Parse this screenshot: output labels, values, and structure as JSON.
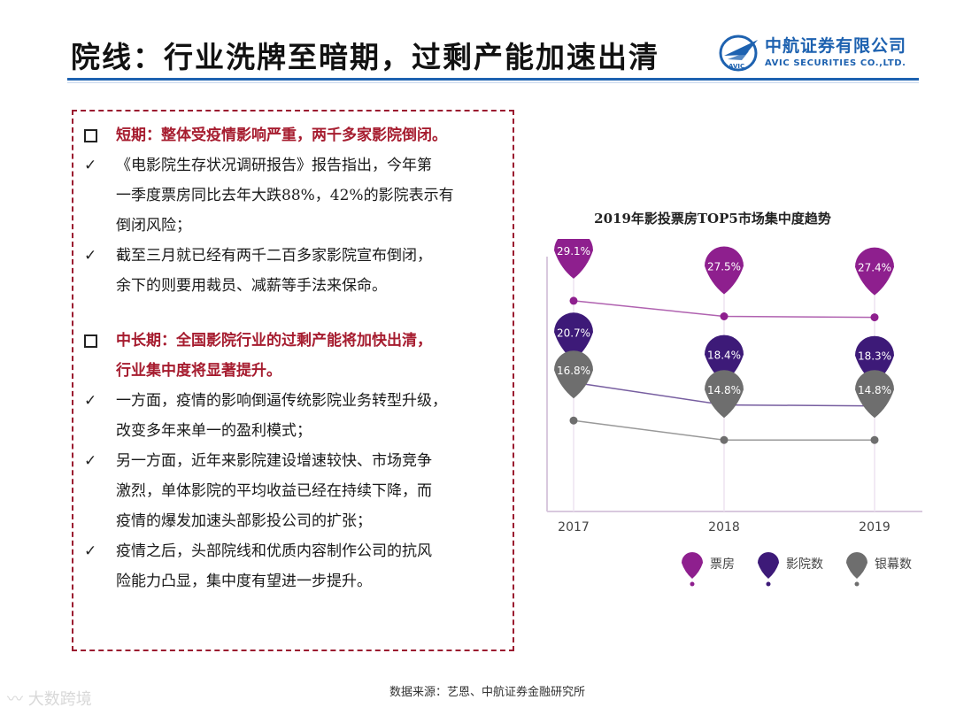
{
  "header": {
    "title": "院线：行业洗牌至暗期，过剩产能加速出清",
    "logo_cn": "中航证券有限公司",
    "logo_en": "AVIC SECURITIES CO.,LTD.",
    "logo_mark": "AVIC",
    "logo_icon": "avic-wing-icon",
    "accent_color": "#1e62b0"
  },
  "content": {
    "heading_color": "#a61c2f",
    "items": [
      {
        "type": "heading",
        "text": "短期：整体受疫情影响严重，两千多家影院倒闭。"
      },
      {
        "type": "check",
        "text": "《电影院生存状况调研报告》报告指出，今年第\n一季度票房同比去年大跌88%，42%的影院表示有\n倒闭风险；"
      },
      {
        "type": "check",
        "text": "截至三月就已经有两千二百多家影院宣布倒闭，\n余下的则要用裁员、减薪等手法来保命。"
      },
      {
        "type": "gap"
      },
      {
        "type": "heading",
        "text": "中长期：全国影院行业的过剩产能将加快出清，\n行业集中度将显著提升。"
      },
      {
        "type": "check",
        "text": "一方面，疫情的影响倒逼传统影院业务转型升级，\n改变多年来单一的盈利模式；"
      },
      {
        "type": "check",
        "text": "另一方面，近年来影院建设增速较快、市场竞争\n激烈，单体影院的平均收益已经在持续下降，而\n疫情的爆发加速头部影投公司的扩张；"
      },
      {
        "type": "check",
        "text": "疫情之后，头部院线和优质内容制作公司的抗风\n险能力凸显，集中度有望进一步提升。"
      }
    ]
  },
  "chart_data": {
    "type": "line",
    "title": "2019年影投票房TOP5市场集中度趋势",
    "x": [
      "2017",
      "2018",
      "2019"
    ],
    "series": [
      {
        "name": "票房",
        "values": [
          29.1,
          27.5,
          27.4
        ],
        "labels": [
          "29.1%",
          "27.5%",
          "27.4%"
        ],
        "color": "#8e1f8e"
      },
      {
        "name": "影院数",
        "values": [
          20.7,
          18.4,
          18.3
        ],
        "labels": [
          "20.7%",
          "18.4%",
          "18.3%"
        ],
        "color": "#3d1a78"
      },
      {
        "name": "银幕数",
        "values": [
          16.8,
          14.8,
          14.8
        ],
        "labels": [
          "16.8%",
          "14.8%",
          "14.8%"
        ],
        "color": "#6e6e6e"
      }
    ],
    "grid": false,
    "legend_position": "bottom"
  },
  "footer": {
    "source": "数据来源：艺恩、中航证券金融研究所",
    "watermark": "大数跨境"
  }
}
